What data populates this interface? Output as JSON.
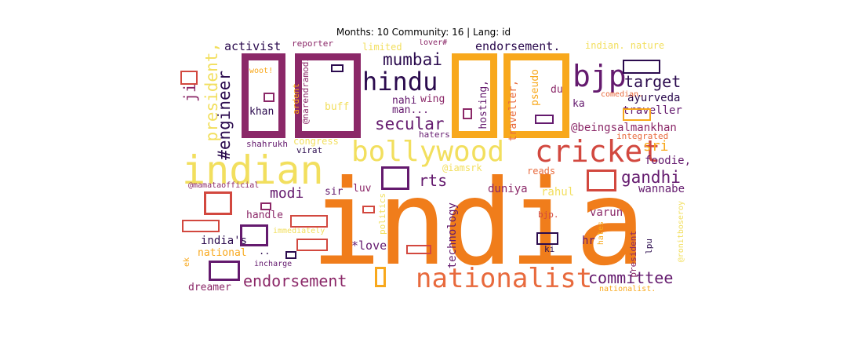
{
  "title": "Months: 10 Community: 16 | Lang: id",
  "palette": {
    "orange": "#f07d1b",
    "gold": "#f8a81c",
    "yellow": "#f2df5e",
    "red": "#d2483f",
    "purple": "#8b2868",
    "dark": "#2b0b4e",
    "salmon": "#e86a3d",
    "plum": "#641a6e"
  },
  "words": {
    "india": "india",
    "indian": "indian",
    "nationalist": "nationalist",
    "cricket": "cricket",
    "bollywood": "bollywood",
    "hindu": "hindu",
    "bjp": "bjp",
    "endorsement": "endorsement",
    "secular": "secular",
    "mumbai": "mumbai",
    "target": "target",
    "committee": "committee",
    "gandhi": "gandhi",
    "engineer": "#engineer",
    "president_comma": "president,",
    "modi": "modi",
    "rts": "rts",
    "activist": "activist",
    "endorsement_dot": "endorsement.",
    "beingsalmankhan": "@beingsalmankhan",
    "sri": "sri",
    "ji": "ji",
    "foodie": "foodie,",
    "wannabe": "wannabe",
    "traveller": "traveller",
    "ayurveda": "ayurveda",
    "duniya": "duniya",
    "rahul": "rahul",
    "varun": "varun",
    "technology": "technology",
    "love": "*love",
    "indias": "india's",
    "national": "national",
    "dreamer": "dreamer",
    "handle": "handle",
    "sir": "sir",
    "luv": "luv",
    "khan": "khan",
    "buff": "buff",
    "man": "man...",
    "nahi": "nahi",
    "wing": "wing",
    "hosting": "hosting,",
    "pseudo": "pseudo",
    "traveller_comma": "traveller,",
    "du": "du",
    "ka": "ka",
    "hr": "hr",
    "ki": "ki",
    "lpu": "lpu",
    "reads": "reads",
    "congress": "congress",
    "reporter": "reporter",
    "lover": "lover#",
    "limited": "limited",
    "indian_nature": "indian. nature",
    "woot": "woot!",
    "ardent": "ardent",
    "narendramodi": "@narendramodi",
    "comedian": "comedian.",
    "integrated": "integrated",
    "haters": "haters",
    "shahrukh": "shahrukh",
    "virat": "virat",
    "iamsrk": "@iamsrk",
    "mamataofficial": "@mamataofficial",
    "immediately": "immediately",
    "politics": "politics",
    "bjp_dot": "bjp.",
    "hates": "hates",
    "president": "president",
    "ronitboseroy": "@ronitboseroy",
    "incharge": "incharge",
    "ek": "ek",
    "nationalist_dot": "nationalist.",
    "dotdot": ".."
  }
}
